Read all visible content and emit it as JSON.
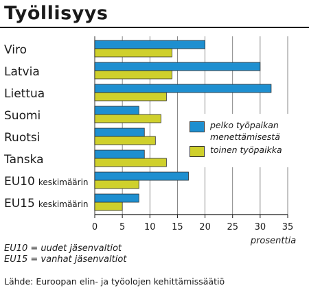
{
  "header": {
    "title": "Työllisyys"
  },
  "colors": {
    "series1": "#1e8fd0",
    "series2": "#cfd02c",
    "grid": "#6b6b6b"
  },
  "chart_data": {
    "type": "bar",
    "orientation": "horizontal",
    "title": "Työllisyys",
    "xlabel": "prosenttia",
    "ylabel": "",
    "xlim": [
      0,
      35
    ],
    "xticks": [
      0,
      5,
      10,
      15,
      20,
      25,
      30,
      35
    ],
    "grid": true,
    "legend_position": "right",
    "categories": [
      {
        "label": "Viro",
        "suffix": ""
      },
      {
        "label": "Latvia",
        "suffix": ""
      },
      {
        "label": "Liettua",
        "suffix": ""
      },
      {
        "label": "Suomi",
        "suffix": ""
      },
      {
        "label": "Ruotsi",
        "suffix": ""
      },
      {
        "label": "Tanska",
        "suffix": ""
      },
      {
        "label": "EU10",
        "suffix": "keskimäärin"
      },
      {
        "label": "EU15",
        "suffix": "keskimäärin"
      }
    ],
    "series": [
      {
        "name": "pelko työpaikan menettämisestä",
        "color": "#1e8fd0",
        "values": [
          20,
          30,
          32,
          8,
          9,
          9,
          17,
          8
        ]
      },
      {
        "name": "toinen työpaikka",
        "color": "#cfd02c",
        "values": [
          14,
          14,
          13,
          12,
          11,
          13,
          8,
          5
        ]
      }
    ]
  },
  "legend": {
    "items": [
      {
        "line1": "pelko työpaikan",
        "line2": "menettämisestä"
      },
      {
        "line1": "toinen työpaikka",
        "line2": ""
      }
    ]
  },
  "notes": {
    "line1": "EU10 = uudet jäsenvaltiot",
    "line2": "EU15 = vanhat jäsenvaltiot"
  },
  "source": "Lähde: Euroopan elin- ja työolojen kehittämissäätiö"
}
